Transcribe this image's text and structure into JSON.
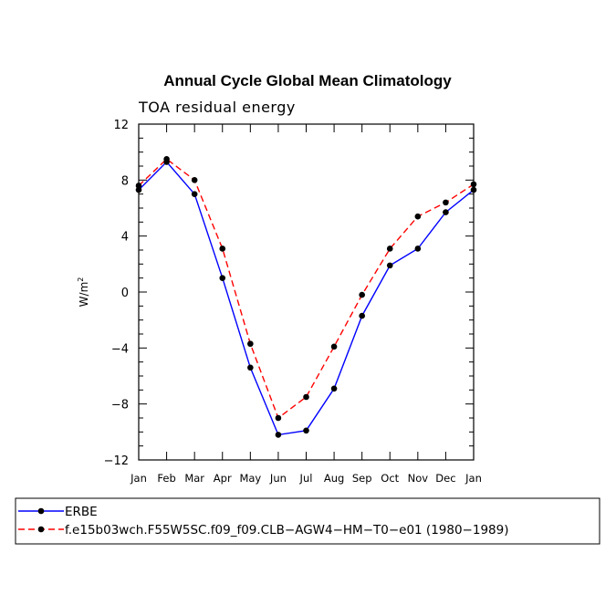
{
  "chart_data": {
    "type": "line",
    "title": "Annual Cycle Global Mean Climatology",
    "subtitle": "TOA residual energy",
    "ylabel": "W/m",
    "ylabel_superscript": "2",
    "ylim": [
      -12,
      12
    ],
    "yticks": [
      "12",
      "8",
      "4",
      "0",
      "−4",
      "−8",
      "−12"
    ],
    "ytick_values": [
      12,
      8,
      4,
      0,
      -4,
      -8,
      -12
    ],
    "categories": [
      "Jan",
      "Feb",
      "Mar",
      "Apr",
      "May",
      "Jun",
      "Jul",
      "Aug",
      "Sep",
      "Oct",
      "Nov",
      "Dec",
      "Jan"
    ],
    "series": [
      {
        "name": "ERBE",
        "color": "#0000ff",
        "dash": "solid",
        "values": [
          7.3,
          9.3,
          7.0,
          1.0,
          -5.4,
          -10.2,
          -9.9,
          -6.9,
          -1.7,
          1.9,
          3.1,
          5.7,
          7.3
        ]
      },
      {
        "name": "f.e15b03wch.F55W5SC.f09_f09.CLB−AGW4−HM−T0−e01 (1980−1989)",
        "color": "#ff0000",
        "dash": "dashed",
        "values": [
          7.6,
          9.5,
          8.0,
          3.1,
          -3.7,
          -9.0,
          -7.5,
          -3.9,
          -0.2,
          3.1,
          5.4,
          6.4,
          7.7
        ]
      }
    ],
    "legend_position": "bottom-left",
    "grid": false
  }
}
